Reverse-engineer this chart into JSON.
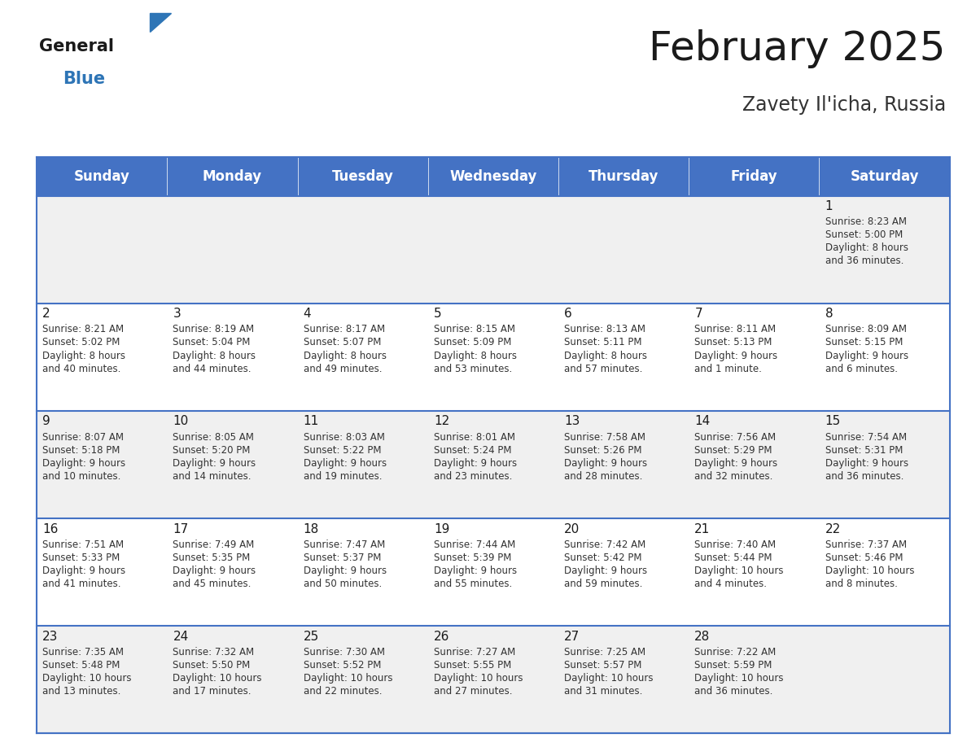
{
  "title": "February 2025",
  "subtitle": "Zavety Il'icha, Russia",
  "header_color": "#4472C4",
  "header_text_color": "#FFFFFF",
  "background_color": "#FFFFFF",
  "cell_bg_even": "#F0F0F0",
  "cell_bg_odd": "#FFFFFF",
  "grid_line_color": "#4472C4",
  "day_headers": [
    "Sunday",
    "Monday",
    "Tuesday",
    "Wednesday",
    "Thursday",
    "Friday",
    "Saturday"
  ],
  "title_fontsize": 36,
  "subtitle_fontsize": 17,
  "header_fontsize": 12,
  "day_num_fontsize": 11,
  "cell_text_fontsize": 8.5,
  "logo_text_general": "General",
  "logo_text_blue": "Blue",
  "calendar_data": {
    "1": {
      "sunrise": "8:23 AM",
      "sunset": "5:00 PM",
      "daylight_line1": "Daylight: 8 hours",
      "daylight_line2": "and 36 minutes."
    },
    "2": {
      "sunrise": "8:21 AM",
      "sunset": "5:02 PM",
      "daylight_line1": "Daylight: 8 hours",
      "daylight_line2": "and 40 minutes."
    },
    "3": {
      "sunrise": "8:19 AM",
      "sunset": "5:04 PM",
      "daylight_line1": "Daylight: 8 hours",
      "daylight_line2": "and 44 minutes."
    },
    "4": {
      "sunrise": "8:17 AM",
      "sunset": "5:07 PM",
      "daylight_line1": "Daylight: 8 hours",
      "daylight_line2": "and 49 minutes."
    },
    "5": {
      "sunrise": "8:15 AM",
      "sunset": "5:09 PM",
      "daylight_line1": "Daylight: 8 hours",
      "daylight_line2": "and 53 minutes."
    },
    "6": {
      "sunrise": "8:13 AM",
      "sunset": "5:11 PM",
      "daylight_line1": "Daylight: 8 hours",
      "daylight_line2": "and 57 minutes."
    },
    "7": {
      "sunrise": "8:11 AM",
      "sunset": "5:13 PM",
      "daylight_line1": "Daylight: 9 hours",
      "daylight_line2": "and 1 minute."
    },
    "8": {
      "sunrise": "8:09 AM",
      "sunset": "5:15 PM",
      "daylight_line1": "Daylight: 9 hours",
      "daylight_line2": "and 6 minutes."
    },
    "9": {
      "sunrise": "8:07 AM",
      "sunset": "5:18 PM",
      "daylight_line1": "Daylight: 9 hours",
      "daylight_line2": "and 10 minutes."
    },
    "10": {
      "sunrise": "8:05 AM",
      "sunset": "5:20 PM",
      "daylight_line1": "Daylight: 9 hours",
      "daylight_line2": "and 14 minutes."
    },
    "11": {
      "sunrise": "8:03 AM",
      "sunset": "5:22 PM",
      "daylight_line1": "Daylight: 9 hours",
      "daylight_line2": "and 19 minutes."
    },
    "12": {
      "sunrise": "8:01 AM",
      "sunset": "5:24 PM",
      "daylight_line1": "Daylight: 9 hours",
      "daylight_line2": "and 23 minutes."
    },
    "13": {
      "sunrise": "7:58 AM",
      "sunset": "5:26 PM",
      "daylight_line1": "Daylight: 9 hours",
      "daylight_line2": "and 28 minutes."
    },
    "14": {
      "sunrise": "7:56 AM",
      "sunset": "5:29 PM",
      "daylight_line1": "Daylight: 9 hours",
      "daylight_line2": "and 32 minutes."
    },
    "15": {
      "sunrise": "7:54 AM",
      "sunset": "5:31 PM",
      "daylight_line1": "Daylight: 9 hours",
      "daylight_line2": "and 36 minutes."
    },
    "16": {
      "sunrise": "7:51 AM",
      "sunset": "5:33 PM",
      "daylight_line1": "Daylight: 9 hours",
      "daylight_line2": "and 41 minutes."
    },
    "17": {
      "sunrise": "7:49 AM",
      "sunset": "5:35 PM",
      "daylight_line1": "Daylight: 9 hours",
      "daylight_line2": "and 45 minutes."
    },
    "18": {
      "sunrise": "7:47 AM",
      "sunset": "5:37 PM",
      "daylight_line1": "Daylight: 9 hours",
      "daylight_line2": "and 50 minutes."
    },
    "19": {
      "sunrise": "7:44 AM",
      "sunset": "5:39 PM",
      "daylight_line1": "Daylight: 9 hours",
      "daylight_line2": "and 55 minutes."
    },
    "20": {
      "sunrise": "7:42 AM",
      "sunset": "5:42 PM",
      "daylight_line1": "Daylight: 9 hours",
      "daylight_line2": "and 59 minutes."
    },
    "21": {
      "sunrise": "7:40 AM",
      "sunset": "5:44 PM",
      "daylight_line1": "Daylight: 10 hours",
      "daylight_line2": "and 4 minutes."
    },
    "22": {
      "sunrise": "7:37 AM",
      "sunset": "5:46 PM",
      "daylight_line1": "Daylight: 10 hours",
      "daylight_line2": "and 8 minutes."
    },
    "23": {
      "sunrise": "7:35 AM",
      "sunset": "5:48 PM",
      "daylight_line1": "Daylight: 10 hours",
      "daylight_line2": "and 13 minutes."
    },
    "24": {
      "sunrise": "7:32 AM",
      "sunset": "5:50 PM",
      "daylight_line1": "Daylight: 10 hours",
      "daylight_line2": "and 17 minutes."
    },
    "25": {
      "sunrise": "7:30 AM",
      "sunset": "5:52 PM",
      "daylight_line1": "Daylight: 10 hours",
      "daylight_line2": "and 22 minutes."
    },
    "26": {
      "sunrise": "7:27 AM",
      "sunset": "5:55 PM",
      "daylight_line1": "Daylight: 10 hours",
      "daylight_line2": "and 27 minutes."
    },
    "27": {
      "sunrise": "7:25 AM",
      "sunset": "5:57 PM",
      "daylight_line1": "Daylight: 10 hours",
      "daylight_line2": "and 31 minutes."
    },
    "28": {
      "sunrise": "7:22 AM",
      "sunset": "5:59 PM",
      "daylight_line1": "Daylight: 10 hours",
      "daylight_line2": "and 36 minutes."
    }
  },
  "weeks": [
    [
      null,
      null,
      null,
      null,
      null,
      null,
      1
    ],
    [
      2,
      3,
      4,
      5,
      6,
      7,
      8
    ],
    [
      9,
      10,
      11,
      12,
      13,
      14,
      15
    ],
    [
      16,
      17,
      18,
      19,
      20,
      21,
      22
    ],
    [
      23,
      24,
      25,
      26,
      27,
      28,
      null
    ]
  ]
}
